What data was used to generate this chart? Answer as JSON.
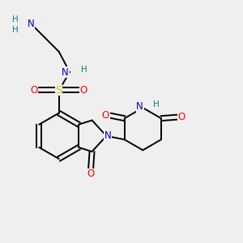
{
  "background_color": "#efefef",
  "bond_color": "#000000",
  "atom_colors": {
    "N": "#0000cc",
    "O": "#ff0000",
    "S": "#cccc00",
    "H": "#008080"
  },
  "figsize": [
    3.0,
    3.0
  ],
  "dpi": 100
}
